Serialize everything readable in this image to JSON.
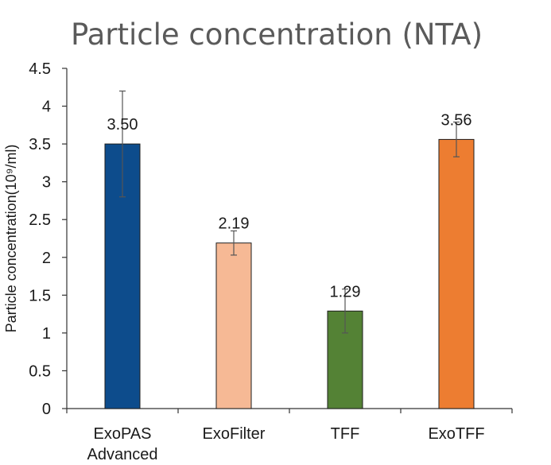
{
  "chart_data": {
    "type": "bar",
    "title": "Particle concentration (NTA)",
    "ylabel": "Particle concentration(10⁹/ml)",
    "xlabel": "",
    "ylim": [
      0,
      4.5
    ],
    "yticks": [
      0,
      0.5,
      1,
      1.5,
      2,
      2.5,
      3,
      3.5,
      4,
      4.5
    ],
    "ytick_labels": [
      "0",
      "0.5",
      "1",
      "1.5",
      "2",
      "2.5",
      "3",
      "3.5",
      "4",
      "4.5"
    ],
    "grid": false,
    "categories": [
      {
        "lines": [
          "ExoPAS",
          "Advanced"
        ]
      },
      {
        "lines": [
          "ExoFilter"
        ]
      },
      {
        "lines": [
          "TFF"
        ]
      },
      {
        "lines": [
          "ExoTFF"
        ]
      }
    ],
    "values": [
      3.5,
      2.19,
      1.29,
      3.56
    ],
    "value_labels": [
      "3.50",
      "2.19",
      "1.29",
      "3.56"
    ],
    "errors": [
      0.7,
      0.16,
      0.29,
      0.23
    ],
    "colors": [
      "#0d4c8c",
      "#f6b995",
      "#548235",
      "#ed7d31"
    ]
  }
}
